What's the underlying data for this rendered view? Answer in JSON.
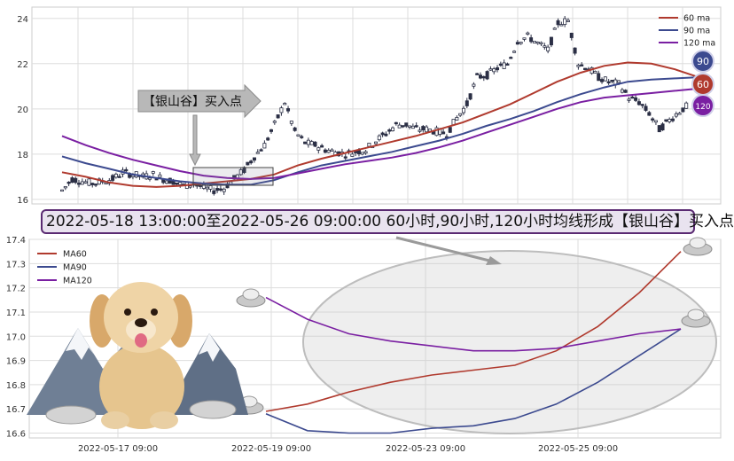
{
  "chart_data": [
    {
      "type": "line",
      "subtype": "candlestick-with-moving-averages",
      "ylim": [
        15.8,
        24.5
      ],
      "y_ticks": [
        "16",
        "18",
        "20",
        "22",
        "24"
      ],
      "grid": true,
      "legend_position": "top-right",
      "legend": [
        "60 ma",
        "90 ma",
        "120 ma"
      ],
      "badges": [
        "90",
        "60",
        "120"
      ],
      "annotation": "【银山谷】买入点",
      "price": {
        "name": "",
        "values": [
          16.4,
          16.9,
          16.8,
          16.7,
          16.8,
          16.9,
          17.2,
          17.1,
          17.0,
          17.1,
          16.9,
          16.8,
          16.6,
          16.7,
          16.5,
          16.4,
          16.5,
          16.9,
          17.3,
          17.9,
          18.4,
          19.3,
          20.3,
          19.0,
          18.5,
          18.4,
          18.2,
          18.1,
          18.0,
          18.1,
          18.2,
          18.6,
          18.9,
          19.3,
          19.3,
          19.1,
          19.1,
          19.0,
          18.9,
          19.6,
          20.2,
          21.4,
          21.5,
          21.8,
          22.0,
          23.0,
          23.2,
          22.9,
          22.6,
          23.8,
          23.9,
          22.0,
          21.8,
          21.4,
          21.2,
          21.1,
          20.5,
          20.3,
          19.8,
          19.1,
          19.5,
          19.9,
          20.2
        ]
      },
      "series": [
        {
          "name": "60 ma",
          "color": "#b03a2e",
          "values": [
            17.2,
            17.0,
            16.75,
            16.6,
            16.55,
            16.6,
            16.7,
            16.8,
            16.9,
            17.1,
            17.5,
            17.8,
            18.05,
            18.3,
            18.55,
            18.8,
            19.1,
            19.4,
            19.8,
            20.2,
            20.7,
            21.2,
            21.6,
            21.9,
            22.05,
            22.0,
            21.75,
            21.4
          ]
        },
        {
          "name": "90 ma",
          "color": "#3c4a8f",
          "values": [
            17.9,
            17.6,
            17.35,
            17.1,
            16.95,
            16.8,
            16.7,
            16.65,
            16.65,
            16.85,
            17.2,
            17.5,
            17.7,
            17.9,
            18.1,
            18.35,
            18.6,
            18.9,
            19.25,
            19.55,
            19.9,
            20.3,
            20.65,
            20.95,
            21.2,
            21.3,
            21.35,
            21.4
          ]
        },
        {
          "name": "120 ma",
          "color": "#7a1fa2",
          "values": [
            18.8,
            18.4,
            18.05,
            17.75,
            17.5,
            17.25,
            17.05,
            16.95,
            16.9,
            16.95,
            17.15,
            17.35,
            17.55,
            17.7,
            17.85,
            18.05,
            18.3,
            18.6,
            18.95,
            19.3,
            19.65,
            20.0,
            20.3,
            20.5,
            20.6,
            20.7,
            20.8,
            20.9
          ]
        }
      ]
    },
    {
      "type": "line",
      "ylim": [
        16.58,
        17.4
      ],
      "y_ticks": [
        "16.6",
        "16.7",
        "16.8",
        "16.9",
        "17.0",
        "17.1",
        "17.2",
        "17.3",
        "17.4"
      ],
      "x_ticks": [
        "2022-05-17 09:00",
        "2022-05-19 09:00",
        "2022-05-23 09:00",
        "2022-05-25 09:00"
      ],
      "grid": true,
      "legend_position": "top-left",
      "series": [
        {
          "name": "MA60",
          "color": "#b03a2e",
          "values": [
            16.69,
            16.72,
            16.77,
            16.81,
            16.84,
            16.86,
            16.88,
            16.94,
            17.04,
            17.18,
            17.35
          ]
        },
        {
          "name": "MA90",
          "color": "#3c4a8f",
          "values": [
            16.68,
            16.61,
            16.6,
            16.6,
            16.62,
            16.63,
            16.66,
            16.72,
            16.81,
            16.92,
            17.03
          ]
        },
        {
          "name": "MA120",
          "color": "#7a1fa2",
          "values": [
            17.16,
            17.07,
            17.01,
            16.98,
            16.96,
            16.94,
            16.94,
            16.95,
            16.98,
            17.01,
            17.03
          ]
        }
      ]
    }
  ],
  "banner": "2022-05-18 13:00:00至2022-05-26 09:00:00 60小时,90小时,120小时均线形成【银山谷】买入点"
}
